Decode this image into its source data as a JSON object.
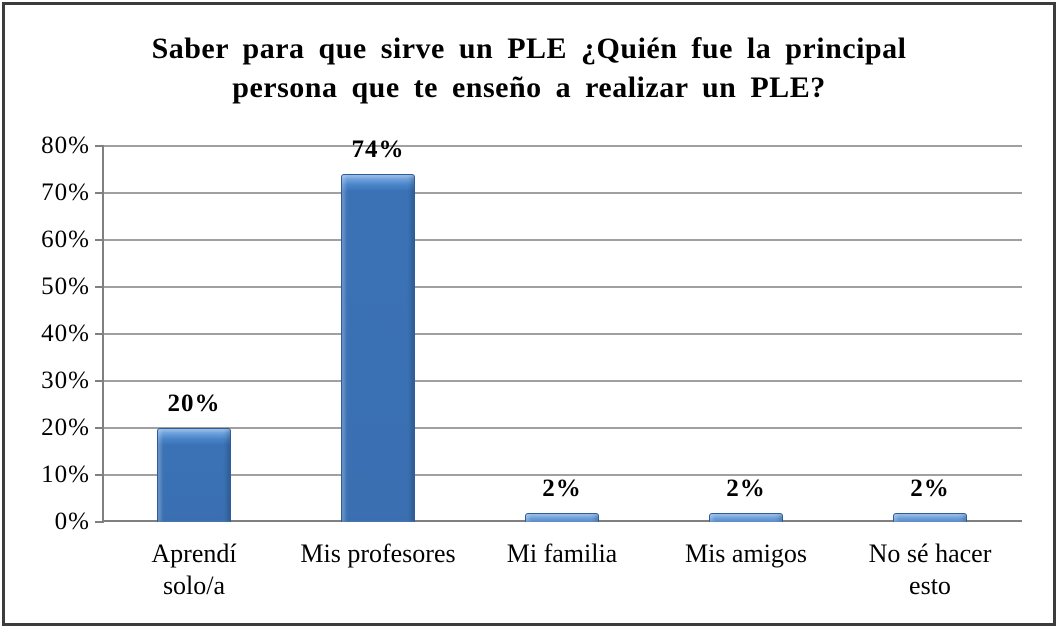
{
  "page": {
    "background_color": "#ffffff",
    "frame_border_color": "#3c3c3c"
  },
  "chart_data": {
    "type": "bar",
    "title": "Saber para que sirve un PLE ¿Quién fue la principal persona que te enseño a realizar un PLE?",
    "title_lines": [
      "Saber para que sirve un PLE ¿Quién fue la principal",
      "persona que te enseño a realizar un PLE?"
    ],
    "categories": [
      "Aprendí solo/a",
      "Mis profesores",
      "Mi familia",
      "Mis amigos",
      "No sé hacer esto"
    ],
    "category_label_lines": [
      [
        "Aprendí",
        "solo/a"
      ],
      [
        "Mis profesores"
      ],
      [
        "Mi familia"
      ],
      [
        "Mis amigos"
      ],
      [
        "No sé hacer",
        "esto"
      ]
    ],
    "values": [
      20,
      74,
      2,
      2,
      2
    ],
    "value_labels": [
      "20%",
      "74%",
      "2%",
      "2%",
      "2%"
    ],
    "ylim": [
      0,
      80
    ],
    "ytick_step": 10,
    "ytick_labels": [
      "0%",
      "10%",
      "20%",
      "30%",
      "40%",
      "50%",
      "60%",
      "70%",
      "80%"
    ],
    "grid": true,
    "legend": false,
    "bar_color": "#3a70b2",
    "bar_highlight_color": "#a6caf2",
    "bar_border_color": "#2b5d9e",
    "gridline_color": "#a0a0a0",
    "axis_color": "#808080",
    "text_color": "#000000"
  }
}
